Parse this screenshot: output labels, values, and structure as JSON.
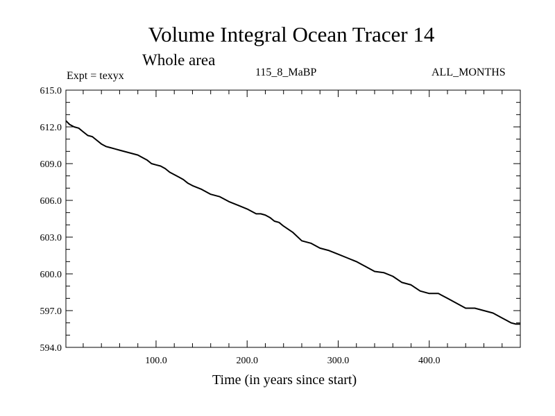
{
  "chart_data": {
    "type": "line",
    "title": "Volume Integral Ocean Tracer 14",
    "subtitle": "Whole area",
    "annotations": {
      "experiment": "Expt = texyx",
      "run": "115_8_MaBP",
      "period": "ALL_MONTHS"
    },
    "xlabel": "Time (in years since start)",
    "ylabel": "",
    "xlim": [
      1,
      500
    ],
    "ylim": [
      594.0,
      615.0
    ],
    "x_ticks": [
      100,
      200,
      300,
      400
    ],
    "x_tick_labels": [
      "100.0",
      "200.0",
      "300.0",
      "400.0"
    ],
    "y_ticks": [
      594,
      597,
      600,
      603,
      606,
      609,
      612,
      615
    ],
    "y_tick_labels": [
      "594.0",
      "597.0",
      "600.0",
      "603.0",
      "606.0",
      "609.0",
      "612.0",
      "615.0"
    ],
    "x_minor_step": 20,
    "y_minor_step": 1,
    "grid": false,
    "series": [
      {
        "x": [
          1,
          5,
          10,
          15,
          20,
          25,
          30,
          35,
          40,
          45,
          50,
          55,
          60,
          70,
          80,
          85,
          90,
          95,
          100,
          105,
          110,
          115,
          120,
          125,
          130,
          135,
          140,
          150,
          160,
          170,
          180,
          190,
          200,
          210,
          215,
          220,
          225,
          230,
          235,
          240,
          250,
          260,
          270,
          280,
          290,
          300,
          310,
          320,
          330,
          340,
          350,
          360,
          370,
          380,
          390,
          400,
          410,
          420,
          430,
          440,
          450,
          460,
          470,
          480,
          485,
          490,
          495,
          500
        ],
        "y": [
          612.5,
          612.2,
          612.0,
          611.9,
          611.6,
          611.3,
          611.2,
          610.9,
          610.6,
          610.4,
          610.3,
          610.2,
          610.1,
          609.9,
          609.7,
          609.5,
          609.3,
          609.0,
          608.9,
          608.8,
          608.6,
          608.3,
          608.1,
          607.9,
          607.7,
          607.4,
          607.2,
          606.9,
          606.5,
          606.3,
          605.9,
          605.6,
          605.3,
          604.9,
          604.9,
          604.8,
          604.6,
          604.3,
          604.2,
          603.9,
          603.4,
          602.7,
          602.5,
          602.1,
          601.9,
          601.6,
          601.3,
          601.0,
          600.6,
          600.2,
          600.1,
          599.8,
          599.3,
          599.1,
          598.6,
          598.4,
          598.4,
          598.0,
          597.6,
          597.2,
          597.2,
          597.0,
          596.8,
          596.4,
          596.2,
          596.0,
          595.9,
          595.9
        ]
      }
    ]
  }
}
